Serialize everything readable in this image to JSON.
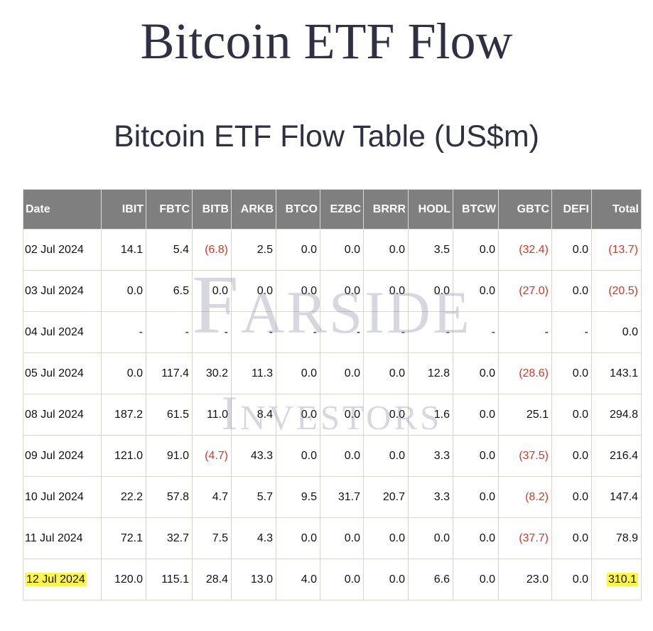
{
  "page": {
    "title": "Bitcoin ETF Flow",
    "subtitle": "Bitcoin ETF Flow Table (US$m)"
  },
  "watermark": {
    "line1_initial": "F",
    "line1_rest": "ARSIDE",
    "line2_initial": "I",
    "line2_rest": "NVESTORS"
  },
  "colors": {
    "header_bg": "#7f7f7f",
    "negative": "#d0392a",
    "highlight": "#fff450",
    "title": "#2f3142"
  },
  "table": {
    "headers": [
      "Date",
      "IBIT",
      "FBTC",
      "BITB",
      "ARKB",
      "BTCO",
      "EZBC",
      "BRRR",
      "HODL",
      "BTCW",
      "GBTC",
      "DEFI",
      "Total"
    ],
    "rows": [
      [
        "02 Jul 2024",
        "14.1",
        "5.4",
        "(6.8)",
        "2.5",
        "0.0",
        "0.0",
        "0.0",
        "3.5",
        "0.0",
        "(32.4)",
        "0.0",
        "(13.7)"
      ],
      [
        "03 Jul 2024",
        "0.0",
        "6.5",
        "0.0",
        "0.0",
        "0.0",
        "0.0",
        "0.0",
        "0.0",
        "0.0",
        "(27.0)",
        "0.0",
        "(20.5)"
      ],
      [
        "04 Jul 2024",
        "-",
        "-",
        "-",
        "-",
        "-",
        "-",
        "-",
        "-",
        "-",
        "-",
        "-",
        "0.0"
      ],
      [
        "05 Jul 2024",
        "0.0",
        "117.4",
        "30.2",
        "11.3",
        "0.0",
        "0.0",
        "0.0",
        "12.8",
        "0.0",
        "(28.6)",
        "0.0",
        "143.1"
      ],
      [
        "08 Jul 2024",
        "187.2",
        "61.5",
        "11.0",
        "8.4",
        "0.0",
        "0.0",
        "0.0",
        "1.6",
        "0.0",
        "25.1",
        "0.0",
        "294.8"
      ],
      [
        "09 Jul 2024",
        "121.0",
        "91.0",
        "(4.7)",
        "43.3",
        "0.0",
        "0.0",
        "0.0",
        "3.3",
        "0.0",
        "(37.5)",
        "0.0",
        "216.4"
      ],
      [
        "10 Jul 2024",
        "22.2",
        "57.8",
        "4.7",
        "5.7",
        "9.5",
        "31.7",
        "20.7",
        "3.3",
        "0.0",
        "(8.2)",
        "0.0",
        "147.4"
      ],
      [
        "11 Jul 2024",
        "72.1",
        "32.7",
        "7.5",
        "4.3",
        "0.0",
        "0.0",
        "0.0",
        "0.0",
        "0.0",
        "(37.7)",
        "0.0",
        "78.9"
      ],
      [
        "12 Jul 2024",
        "120.0",
        "115.1",
        "28.4",
        "13.0",
        "4.0",
        "0.0",
        "0.0",
        "6.6",
        "0.0",
        "23.0",
        "0.0",
        "310.1"
      ]
    ],
    "highlighted_row": 8
  }
}
